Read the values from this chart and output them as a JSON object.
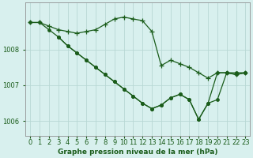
{
  "background_color": "#d8f0ee",
  "grid_color": "#b8d8d4",
  "line_color": "#1a5c1a",
  "title": "Graphe pression niveau de la mer (hPa)",
  "tick_fontsize": 6,
  "title_fontsize": 6.5,
  "xlim": [
    -0.5,
    23.5
  ],
  "ylim": [
    1005.6,
    1009.3
  ],
  "yticks": [
    1006,
    1007,
    1008
  ],
  "xticks": [
    0,
    1,
    2,
    3,
    4,
    5,
    6,
    7,
    8,
    9,
    10,
    11,
    12,
    13,
    14,
    15,
    16,
    17,
    18,
    19,
    20,
    21,
    22,
    23
  ],
  "series": [
    {
      "x": [
        0,
        1,
        2,
        3,
        4,
        5,
        6,
        7,
        8,
        9,
        10,
        11,
        12,
        13,
        14,
        15,
        16,
        17,
        18,
        19,
        20,
        21,
        22,
        23
      ],
      "y": [
        1008.75,
        1008.75,
        1008.65,
        1008.55,
        1008.5,
        1008.45,
        1008.5,
        1008.55,
        1008.7,
        1008.85,
        1008.9,
        1008.85,
        1008.8,
        1008.5,
        1007.55,
        1007.7,
        1007.6,
        1007.5,
        1007.35,
        1007.2,
        1007.35,
        1007.35,
        1007.3,
        1007.35
      ],
      "marker": "+",
      "markersize": 4.5,
      "linewidth": 0.9
    },
    {
      "x": [
        0,
        1,
        2,
        3,
        4,
        5,
        6,
        7,
        8,
        9,
        10,
        11,
        12,
        13,
        14,
        15,
        16,
        17,
        18,
        19,
        20,
        21,
        22,
        23
      ],
      "y": [
        1008.75,
        1008.75,
        1008.55,
        1008.35,
        1008.1,
        1007.9,
        1007.7,
        1007.5,
        1007.3,
        1007.1,
        1006.9,
        1006.7,
        1006.5,
        1006.35,
        1006.45,
        1006.65,
        1006.75,
        1006.6,
        1006.05,
        1006.5,
        1007.35,
        1007.35,
        1007.3,
        1007.35
      ],
      "marker": "o",
      "markersize": 2.5,
      "linewidth": 0.9
    },
    {
      "x": [
        3,
        4,
        5,
        6,
        7,
        8,
        9,
        10,
        11,
        12,
        13,
        14,
        15,
        16,
        17,
        18,
        19,
        20,
        21,
        22,
        23
      ],
      "y": [
        1008.35,
        1008.1,
        1007.9,
        1007.7,
        1007.5,
        1007.3,
        1007.1,
        1006.9,
        1006.7,
        1006.5,
        1006.35,
        1006.45,
        1006.65,
        1006.75,
        1006.6,
        1006.05,
        1006.5,
        1006.6,
        1007.35,
        1007.35,
        1007.35
      ],
      "marker": "o",
      "markersize": 2.5,
      "linewidth": 0.9
    }
  ]
}
